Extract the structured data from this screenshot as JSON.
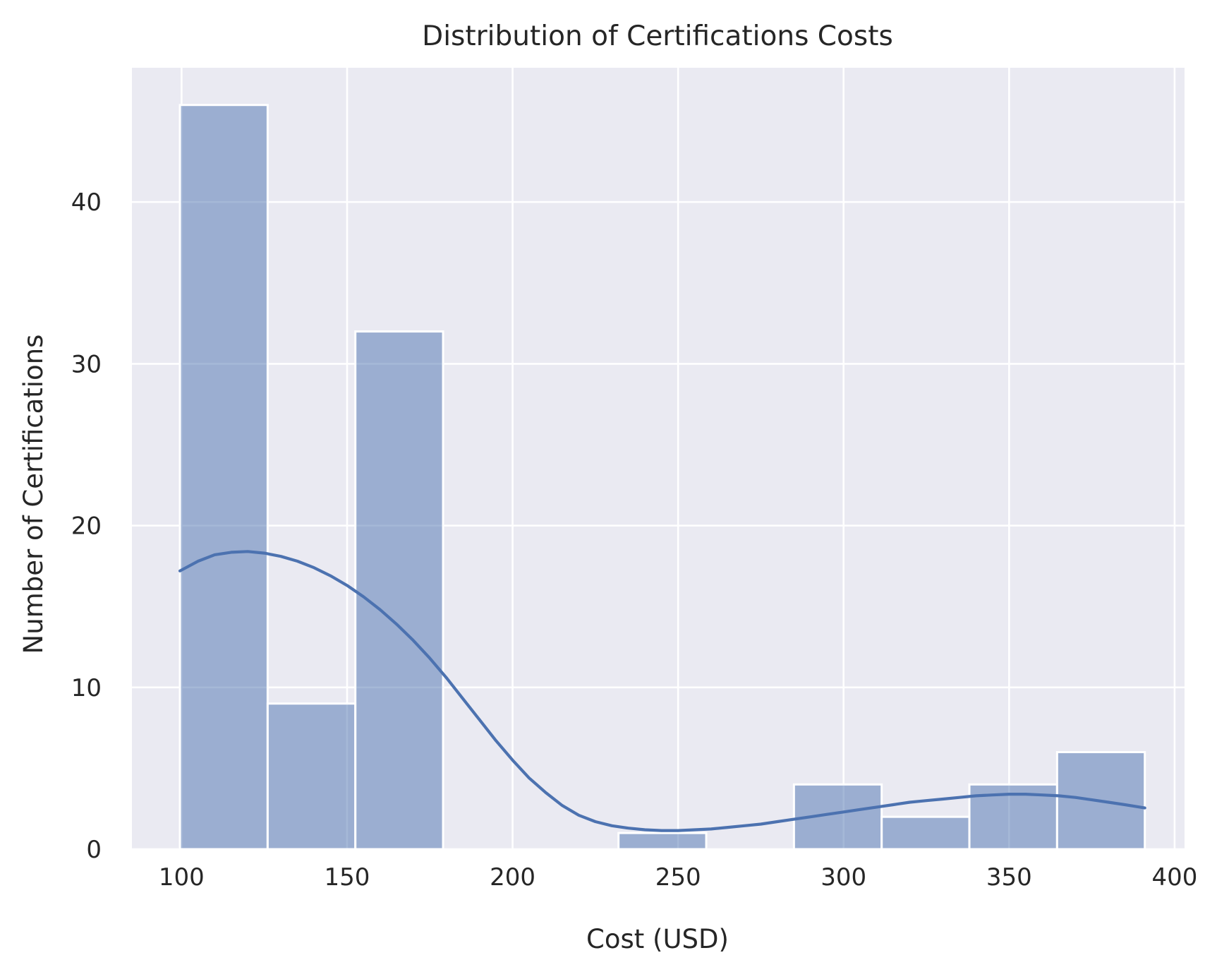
{
  "chart_data": {
    "type": "histogram",
    "title": "Distribution of Certifications Costs",
    "xlabel": "Cost (USD)",
    "ylabel": "Number of Certifications",
    "xlim": [
      85,
      403
    ],
    "ylim": [
      0,
      48.3
    ],
    "x_ticks": [
      100,
      150,
      200,
      250,
      300,
      350,
      400
    ],
    "y_ticks": [
      0,
      10,
      20,
      30,
      40
    ],
    "grid": true,
    "legend": "none",
    "colors": {
      "bar": "#4c72b0",
      "kde": "#4c72b0",
      "plot_background": "#eaeaf2",
      "grid": "#ffffff",
      "text": "#262626"
    },
    "bins": [
      {
        "x0": 99.5,
        "x1": 126.0,
        "count": 46
      },
      {
        "x0": 126.0,
        "x1": 152.5,
        "count": 9
      },
      {
        "x0": 152.5,
        "x1": 179.0,
        "count": 32
      },
      {
        "x0": 179.0,
        "x1": 205.5,
        "count": 0
      },
      {
        "x0": 205.5,
        "x1": 232.0,
        "count": 0
      },
      {
        "x0": 232.0,
        "x1": 258.5,
        "count": 1
      },
      {
        "x0": 258.5,
        "x1": 285.0,
        "count": 0
      },
      {
        "x0": 285.0,
        "x1": 311.5,
        "count": 4
      },
      {
        "x0": 311.5,
        "x1": 338.0,
        "count": 2
      },
      {
        "x0": 338.0,
        "x1": 364.5,
        "count": 4
      },
      {
        "x0": 364.5,
        "x1": 391.0,
        "count": 6
      }
    ],
    "kde": {
      "x": [
        99.5,
        105,
        110,
        115,
        120,
        125,
        130,
        135,
        140,
        145,
        150,
        155,
        160,
        165,
        170,
        175,
        180,
        185,
        190,
        195,
        200,
        205,
        210,
        215,
        220,
        225,
        230,
        235,
        240,
        245,
        250,
        255,
        260,
        265,
        270,
        275,
        280,
        285,
        290,
        295,
        300,
        305,
        310,
        315,
        320,
        325,
        330,
        335,
        340,
        345,
        350,
        355,
        360,
        365,
        370,
        375,
        380,
        385,
        391
      ],
      "y": [
        17.2,
        17.8,
        18.2,
        18.35,
        18.4,
        18.3,
        18.1,
        17.8,
        17.4,
        16.9,
        16.3,
        15.6,
        14.8,
        13.9,
        12.9,
        11.8,
        10.6,
        9.3,
        8.0,
        6.7,
        5.5,
        4.4,
        3.5,
        2.7,
        2.1,
        1.7,
        1.45,
        1.3,
        1.2,
        1.15,
        1.15,
        1.2,
        1.25,
        1.35,
        1.45,
        1.55,
        1.7,
        1.85,
        2.0,
        2.15,
        2.3,
        2.45,
        2.6,
        2.75,
        2.9,
        3.0,
        3.1,
        3.2,
        3.3,
        3.35,
        3.4,
        3.4,
        3.35,
        3.3,
        3.2,
        3.05,
        2.9,
        2.75,
        2.55
      ]
    }
  }
}
